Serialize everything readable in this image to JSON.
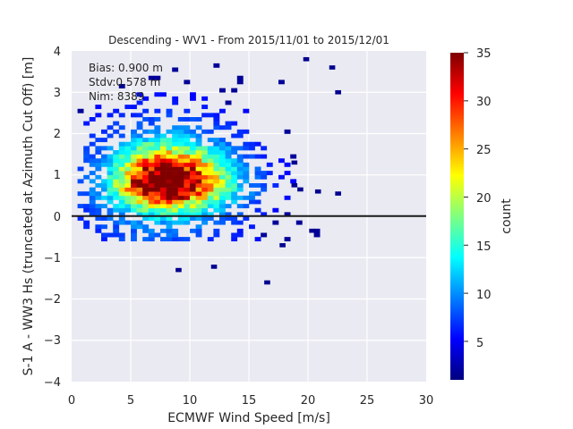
{
  "chart_data": {
    "type": "heatmap",
    "title": "Descending - WV1 - From 2015/11/01 to 2015/12/01",
    "xlabel": "ECMWF Wind Speed [m/s]",
    "ylabel": "S-1 A - WW3 Hs (truncated at Azimuth Cut Off) [m]",
    "xlim": [
      0,
      30
    ],
    "ylim": [
      -4,
      4
    ],
    "xticks": [
      "0",
      "5",
      "10",
      "15",
      "20",
      "25",
      "30"
    ],
    "yticks": [
      "4",
      "3",
      "2",
      "1",
      "0",
      "−1",
      "−2",
      "−3",
      "−4"
    ],
    "grid": true,
    "reference_line_y": 0,
    "annotations": [
      "Bias: 0.900 m",
      "Stdv:0.578 m",
      "Nim: 8389"
    ],
    "colorbar": {
      "label": "count",
      "range": [
        1,
        35
      ],
      "ticks": [
        "35",
        "30",
        "25",
        "20",
        "15",
        "10",
        "5"
      ],
      "colormap": "jet"
    },
    "density_peak": {
      "x": 7.5,
      "y": 0.75,
      "count": 35
    },
    "outliers": [
      {
        "x": 8.8,
        "y": -1.35
      },
      {
        "x": 11.8,
        "y": -1.27
      },
      {
        "x": 16.3,
        "y": -1.65
      },
      {
        "x": 17.6,
        "y": -0.75
      },
      {
        "x": 20.1,
        "y": -0.4
      },
      {
        "x": 20.6,
        "y": 0.55
      },
      {
        "x": 22.3,
        "y": 0.5
      },
      {
        "x": 22.3,
        "y": 2.95
      },
      {
        "x": 21.8,
        "y": 3.55
      },
      {
        "x": 19.6,
        "y": 3.75
      },
      {
        "x": 18.6,
        "y": 0.7
      },
      {
        "x": 19.1,
        "y": 0.6
      },
      {
        "x": 18.6,
        "y": 1.25
      }
    ]
  },
  "colors": {
    "axes_background": "#EAEAF2",
    "grid": "#FFFFFF",
    "zero_line": "#1a1a1a",
    "text": "#262626"
  }
}
